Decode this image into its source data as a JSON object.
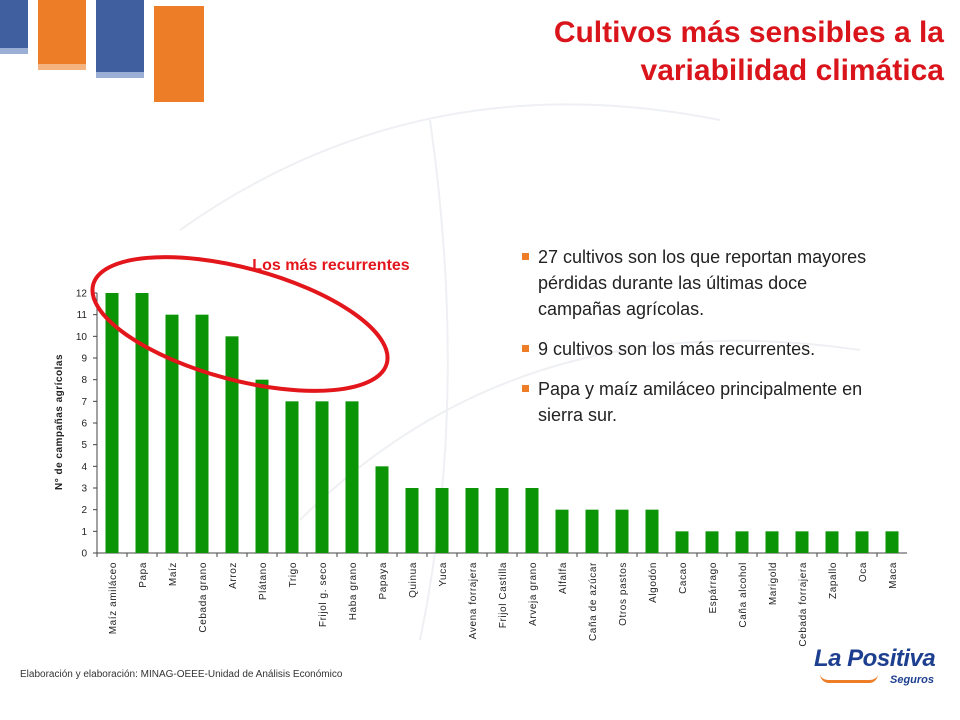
{
  "title": {
    "line1": "Cultivos más sensibles a la",
    "line2": "variabilidad climática"
  },
  "bullets": [
    "27 cultivos son los que reportan mayores pérdidas durante las últimas doce campañas agrícolas.",
    " 9 cultivos son los más recurrentes.",
    " Papa y maíz amiláceo principalmente en sierra sur."
  ],
  "source": "Elaboración y elaboración: MINAG-OEEE-Unidad de Análisis Económico",
  "logo": {
    "name": "La Positiva",
    "sub": "Seguros"
  },
  "colors": {
    "title": "#d9141b",
    "bar": "#0b9405",
    "highlight": "#e3161c",
    "accent": "#ee7d28",
    "brand": "#1d3f8f"
  },
  "chart_data": {
    "type": "bar",
    "categories": [
      "Maíz amiláceo",
      "Papa",
      "Maíz",
      "Cebada grano",
      "Arroz",
      "Plátano",
      "Trigo",
      "Frijol g. seco",
      "Haba grano",
      "Papaya",
      "Quinua",
      "Yuca",
      "Avena forrajera",
      "Frijol Castilla",
      "Arveja grano",
      "Alfalfa",
      "Caña de azúcar",
      "Otros pastos",
      "Algodón",
      "Cacao",
      "Espárrago",
      "Caña alcohol",
      "Marigold",
      "Cebada forrajera",
      "Zapallo",
      "Oca",
      "Maca"
    ],
    "values": [
      12,
      12,
      11,
      11,
      10,
      8,
      7,
      7,
      7,
      4,
      3,
      3,
      3,
      3,
      3,
      2,
      2,
      2,
      2,
      1,
      1,
      1,
      1,
      1,
      1,
      1,
      1
    ],
    "ylabel": "N° de campañas agrícolas",
    "yticks": [
      "0",
      "1",
      "2",
      "3",
      "4",
      "5",
      "6",
      "7",
      "8",
      "9",
      "10",
      "11",
      "12"
    ],
    "ylim": [
      0,
      12
    ],
    "annotation": "Los más recurrentes",
    "grid": false
  }
}
